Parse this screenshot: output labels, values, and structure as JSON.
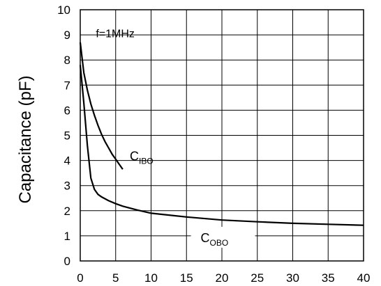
{
  "chart_data": {
    "type": "line",
    "ylabel": "Capacitance (pF)",
    "xlabel": "",
    "xlim": [
      0,
      40
    ],
    "ylim": [
      0,
      10
    ],
    "x_ticks": [
      "0",
      "5",
      "10",
      "15",
      "20",
      "25",
      "30",
      "35",
      "40"
    ],
    "y_ticks": [
      "0",
      "1",
      "2",
      "3",
      "4",
      "5",
      "6",
      "7",
      "8",
      "9",
      "10"
    ],
    "grid": true,
    "annotation": "f=1MHz",
    "series": [
      {
        "name": "C",
        "subscript": "IBO",
        "x": [
          0,
          0.5,
          1,
          1.5,
          2,
          2.5,
          3,
          3.5,
          4,
          4.5,
          5,
          5.5,
          6
        ],
        "y": [
          8.7,
          7.5,
          6.8,
          6.25,
          5.8,
          5.4,
          5.05,
          4.75,
          4.5,
          4.25,
          4.05,
          3.85,
          3.65
        ]
      },
      {
        "name": "C",
        "subscript": "OBO",
        "x": [
          0,
          0.5,
          1,
          1.5,
          2,
          2.5,
          3,
          4,
          5,
          6,
          8,
          10,
          15,
          20,
          25,
          30,
          35,
          40
        ],
        "y": [
          7.8,
          6.3,
          4.6,
          3.3,
          2.85,
          2.65,
          2.55,
          2.4,
          2.28,
          2.18,
          2.03,
          1.9,
          1.75,
          1.63,
          1.56,
          1.5,
          1.46,
          1.42
        ]
      }
    ]
  }
}
